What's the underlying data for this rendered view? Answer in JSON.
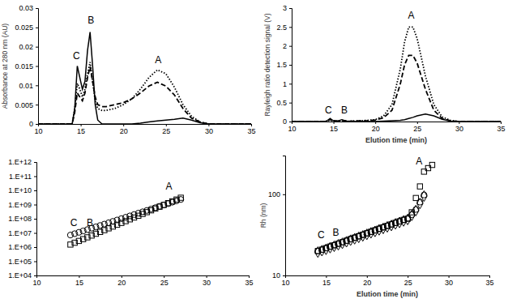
{
  "chart_data": [
    {
      "type": "line",
      "y_label": "Absorbance at 280 nm (AU)",
      "x": [
        10,
        12,
        14,
        14.3,
        14.6,
        14.9,
        15.2,
        15.5,
        15.8,
        16.1,
        16.4,
        16.7,
        17,
        17.5,
        18,
        19,
        20,
        21,
        22,
        23,
        24,
        25,
        26,
        27,
        28,
        29,
        30,
        32,
        35
      ],
      "series": [
        {
          "color": "#000000",
          "line_style": "solid",
          "values": [
            0,
            0,
            0,
            0.004,
            0.015,
            0.012,
            0.009,
            0.011,
            0.019,
            0.0238,
            0.015,
            0.005,
            0.001,
            0,
            0,
            0,
            0,
            0,
            0.0002,
            0.0005,
            0.0008,
            0.001,
            0.0012,
            0.0015,
            0.001,
            0.0003,
            0,
            0,
            0
          ]
        },
        {
          "color": "#000000",
          "line_style": "dashed",
          "values": [
            0,
            0,
            0,
            0.003,
            0.008,
            0.007,
            0.006,
            0.008,
            0.012,
            0.0148,
            0.011,
            0.007,
            0.005,
            0.0045,
            0.0045,
            0.005,
            0.0055,
            0.0065,
            0.008,
            0.0098,
            0.0108,
            0.0098,
            0.0075,
            0.004,
            0.0015,
            0.0005,
            0,
            0,
            0
          ]
        },
        {
          "color": "#000000",
          "line_style": "dotted",
          "values": [
            0,
            0,
            0,
            0.004,
            0.0105,
            0.009,
            0.007,
            0.009,
            0.013,
            0.016,
            0.011,
            0.006,
            0.004,
            0.0035,
            0.0035,
            0.004,
            0.005,
            0.0065,
            0.009,
            0.012,
            0.014,
            0.013,
            0.0095,
            0.005,
            0.002,
            0.0005,
            0,
            0,
            0
          ]
        }
      ],
      "xlim": [
        10,
        35
      ],
      "xticks": [
        10,
        15,
        20,
        25,
        30,
        35
      ],
      "ylim": [
        0,
        0.03
      ],
      "yticks": [
        0,
        0.005,
        0.01,
        0.015,
        0.02,
        0.025,
        0.03
      ],
      "annotations": [
        {
          "text": "C",
          "x": 14.5,
          "y": 0.0168
        },
        {
          "text": "B",
          "x": 16.2,
          "y": 0.026
        },
        {
          "text": "A",
          "x": 24.1,
          "y": 0.0157
        }
      ]
    },
    {
      "type": "line",
      "x_label": "Elution time (min)",
      "y_label": "Rayleigh ratio detection signal (V)",
      "x": [
        10,
        14,
        14.3,
        14.6,
        14.9,
        15.5,
        16,
        16.3,
        16.6,
        17,
        18,
        19,
        20,
        21,
        22,
        23,
        23.5,
        24,
        24.5,
        25,
        26,
        27,
        28,
        29,
        30,
        35
      ],
      "series": [
        {
          "color": "#000000",
          "line_style": "dotted",
          "values": [
            0,
            0,
            0.02,
            0.05,
            0.02,
            0.01,
            0.03,
            0.02,
            0.01,
            0.01,
            0.02,
            0.03,
            0.05,
            0.15,
            0.45,
            1.4,
            2.1,
            2.5,
            2.5,
            2.2,
            1.2,
            0.45,
            0.12,
            0.03,
            0,
            0
          ]
        },
        {
          "color": "#000000",
          "line_style": "dashed",
          "values": [
            0,
            0,
            0.02,
            0.05,
            0.02,
            0.01,
            0.03,
            0.02,
            0.01,
            0.01,
            0.02,
            0.02,
            0.04,
            0.1,
            0.3,
            1.0,
            1.5,
            1.75,
            1.75,
            1.55,
            0.85,
            0.3,
            0.08,
            0.02,
            0,
            0
          ]
        },
        {
          "color": "#000000",
          "line_style": "solid",
          "values": [
            0,
            0,
            0.03,
            0.08,
            0.03,
            0.01,
            0.05,
            0.03,
            0.01,
            0,
            0,
            0,
            0,
            0.01,
            0.02,
            0.03,
            0.05,
            0.08,
            0.11,
            0.15,
            0.2,
            0.15,
            0.06,
            0.01,
            0,
            0
          ]
        }
      ],
      "xlim": [
        10,
        35
      ],
      "xticks": [
        10,
        15,
        20,
        25,
        30,
        35
      ],
      "ylim": [
        0,
        3
      ],
      "yticks": [
        0,
        0.5,
        1,
        1.5,
        2,
        2.5,
        3
      ],
      "annotations": [
        {
          "text": "C",
          "x": 14.4,
          "y": 0.22
        },
        {
          "text": "B",
          "x": 16.3,
          "y": 0.22
        },
        {
          "text": "A",
          "x": 24.3,
          "y": 2.72
        }
      ]
    },
    {
      "type": "scatter",
      "log": "y",
      "x": [
        14,
        14.5,
        15,
        15.5,
        16,
        16.5,
        17,
        17.5,
        18,
        18.5,
        19,
        19.5,
        20,
        20.5,
        21,
        21.5,
        22,
        22.5,
        23,
        23.5,
        24,
        24.5,
        25,
        25.5,
        26,
        26.5,
        27
      ],
      "series": [
        {
          "color": "#000000",
          "marker": "circle",
          "values": [
            7080000.0,
            8840000.0,
            11000000.0,
            13800000.0,
            17200000.0,
            21500000.0,
            26900000.0,
            33500000.0,
            41900000.0,
            52300000.0,
            65300000.0,
            81600000.0,
            102000000.0,
            127000000.0,
            159000000.0,
            198000000.0,
            248000000.0,
            309000000.0,
            386000000.0,
            483000000.0,
            603000000.0,
            752000000.0,
            940000000.0,
            1170000000.0,
            1470000000.0,
            1830000000.0,
            2290000000.0
          ]
        },
        {
          "color": "#000000",
          "marker": "square",
          "values": [
            1510000.0,
            2030000.0,
            2720000.0,
            3640000.0,
            4880000.0,
            6530000.0,
            8750000.0,
            11700000.0,
            15700000.0,
            21000000.0,
            28200000.0,
            37800000.0,
            50600000.0,
            67800000.0,
            90800000.0,
            122000000.0,
            163000000.0,
            218000000.0,
            292000000.0,
            392000000.0,
            525000000.0,
            703000000.0,
            942000000.0,
            1260000000.0,
            1690000000.0,
            2260000000.0,
            3030000000.0
          ]
        }
      ],
      "xlim": [
        10,
        35
      ],
      "xticks": [
        10,
        15,
        20,
        25,
        30,
        35
      ],
      "ylim": [
        10000.0,
        1000000000000.0
      ],
      "yticks": [
        {
          "value": 10000.0,
          "label": "1.E+04"
        },
        {
          "value": 100000.0,
          "label": "1.E+05"
        },
        {
          "value": 1000000.0,
          "label": "1.E+06"
        },
        {
          "value": 10000000.0,
          "label": "1.E+07"
        },
        {
          "value": 100000000.0,
          "label": "1.E+08"
        },
        {
          "value": 1000000000.0,
          "label": "1.E+09"
        },
        {
          "value": 10000000000.0,
          "label": "1.E+10"
        },
        {
          "value": 100000000000.0,
          "label": "1.E+11"
        },
        {
          "value": 1000000000000.0,
          "label": "1.E+12"
        }
      ],
      "annotations": [
        {
          "text": "C",
          "x": 14.4,
          "y": 30000000.0
        },
        {
          "text": "B",
          "x": 16.3,
          "y": 30000000.0
        },
        {
          "text": "A",
          "x": 25.6,
          "y": 12000000000.0
        }
      ]
    },
    {
      "type": "scatter",
      "log": "y",
      "x_label": "Elution time (min)",
      "y_label": "Rh (nm)",
      "x": [
        14,
        14.5,
        15,
        15.5,
        16,
        16.5,
        17,
        17.5,
        18,
        18.5,
        19,
        19.5,
        20,
        20.5,
        21,
        21.5,
        22,
        22.5,
        23,
        23.5,
        24,
        24.5,
        25,
        25.5,
        26,
        26.5,
        27,
        27.5,
        28
      ],
      "series": [
        {
          "color": "#000000",
          "marker": "diamond",
          "values": [
            19.4,
            20.2,
            21.0,
            22.0,
            22.9,
            23.9,
            24.9,
            26.0,
            27.2,
            28.3,
            29.5,
            30.7,
            32.1,
            33.5,
            34.9,
            36.5,
            38.0,
            39.7,
            41.3,
            43.2,
            45.0,
            47.0,
            49.0,
            55,
            63,
            77,
            95,
            null,
            null
          ]
        },
        {
          "color": "#000000",
          "marker": "circle",
          "values": [
            20.0,
            20.8,
            21.7,
            22.7,
            23.6,
            24.6,
            25.7,
            26.8,
            28.0,
            29.2,
            30.4,
            31.7,
            33.1,
            34.5,
            36.0,
            37.6,
            39.2,
            40.9,
            42.6,
            44.5,
            46.4,
            48.4,
            50.5,
            56,
            65,
            80,
            98,
            null,
            null
          ]
        },
        {
          "color": "#000000",
          "marker": "square",
          "values": [
            20.0,
            20.8,
            21.7,
            22.7,
            23.6,
            24.6,
            25.7,
            26.8,
            28.0,
            29.2,
            30.4,
            31.7,
            33.1,
            34.5,
            36.0,
            37.6,
            39.2,
            40.9,
            42.6,
            44.5,
            46.4,
            48.4,
            50,
            60,
            90,
            125,
            190,
            210,
            230
          ]
        }
      ],
      "xlim": [
        10,
        35
      ],
      "xticks": [
        10,
        15,
        20,
        25,
        30,
        35
      ],
      "ylim": [
        10,
        300
      ],
      "yticks": [
        10,
        100
      ],
      "annotations": [
        {
          "text": "C",
          "x": 14.4,
          "y": 29
        },
        {
          "text": "B",
          "x": 16.2,
          "y": 31
        },
        {
          "text": "A",
          "x": 26.4,
          "y": 235
        }
      ]
    }
  ]
}
